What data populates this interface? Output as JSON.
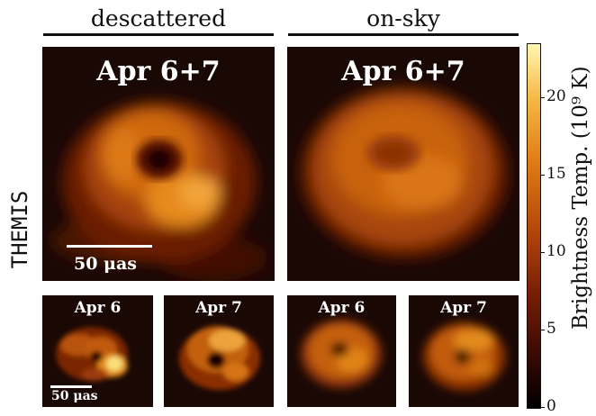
{
  "headers": {
    "left": "descattered",
    "right": "on-sky"
  },
  "row_label": "THEMIS",
  "panels": {
    "big_left": {
      "label": "Apr 6+7",
      "scalebar": "50 μas"
    },
    "big_right": {
      "label": "Apr 6+7"
    },
    "small": [
      {
        "label": "Apr 6",
        "scalebar": "50 μas"
      },
      {
        "label": "Apr 7"
      },
      {
        "label": "Apr 6"
      },
      {
        "label": "Apr 7"
      }
    ]
  },
  "colorbar": {
    "title": "Brightness Temp. (10⁹ K)",
    "ticks": [
      "0",
      "5",
      "10",
      "15",
      "20"
    ],
    "tick_values": [
      0,
      5,
      10,
      15,
      20
    ],
    "range": [
      0,
      23.5
    ],
    "colormap": [
      "#000000",
      "#3b0a03",
      "#7a1f06",
      "#b84a0a",
      "#e07d16",
      "#f5b845",
      "#fff3a0"
    ]
  }
}
